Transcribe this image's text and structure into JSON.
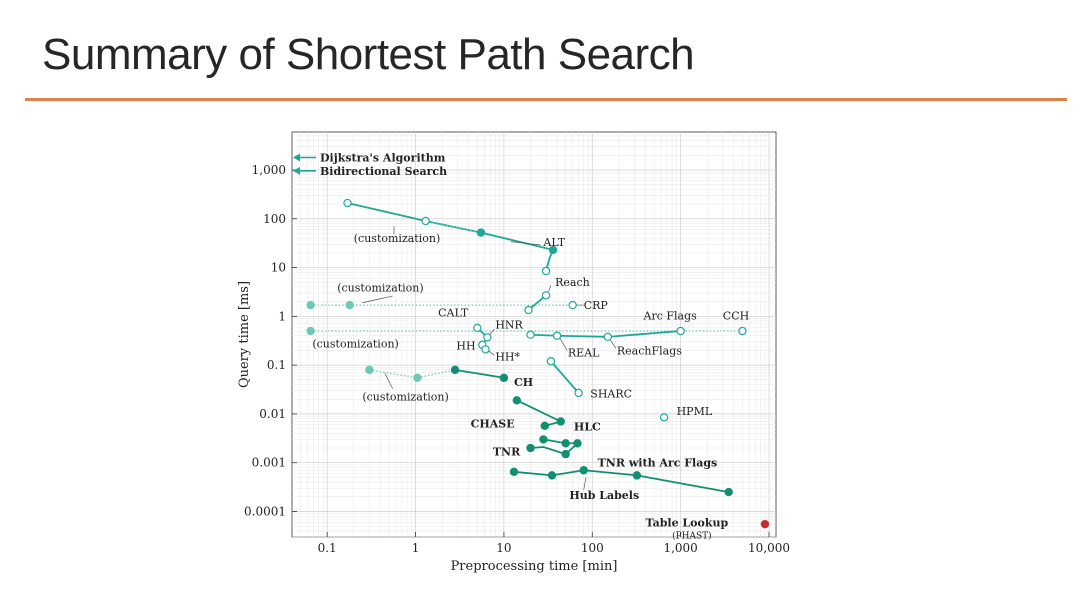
{
  "slide": {
    "title": "Summary of Shortest Path Search"
  },
  "colors": {
    "accent_rule": "#d9834a",
    "main": "#1fa898",
    "light": "#6cc9b3",
    "dark": "#128f73",
    "red": "#c0302e",
    "gray": "#777777"
  },
  "chart_data": {
    "type": "scatter",
    "xlabel": "Preprocessing time [min]",
    "ylabel": "Query time [ms]",
    "x_scale": "log",
    "y_scale": "log",
    "xlim": [
      0.04,
      12000
    ],
    "ylim": [
      3e-05,
      6000
    ],
    "x_ticks": [
      {
        "v": 0.1,
        "label": "0.1"
      },
      {
        "v": 1,
        "label": "1"
      },
      {
        "v": 10,
        "label": "10"
      },
      {
        "v": 100,
        "label": "100"
      },
      {
        "v": 1000,
        "label": "1,000"
      },
      {
        "v": 10000,
        "label": "10,000"
      }
    ],
    "y_ticks": [
      {
        "v": 1000,
        "label": "1,000"
      },
      {
        "v": 100,
        "label": "100"
      },
      {
        "v": 10,
        "label": "10"
      },
      {
        "v": 1,
        "label": "1"
      },
      {
        "v": 0.1,
        "label": "0.1"
      },
      {
        "v": 0.01,
        "label": "0.01"
      },
      {
        "v": 0.001,
        "label": "0.001"
      },
      {
        "v": 0.0001,
        "label": "0.0001"
      }
    ],
    "grid": true,
    "arrows": [
      {
        "y": 1800,
        "label": "Dijkstra's Algorithm"
      },
      {
        "y": 960,
        "label": "Bidirectional Search"
      }
    ],
    "lines": [
      {
        "style": "solid",
        "color": "main",
        "pts": [
          [
            0.17,
            210
          ],
          [
            1.3,
            90
          ],
          [
            5.5,
            52
          ],
          [
            36,
            23
          ],
          [
            33,
            16
          ],
          [
            30,
            8.5
          ]
        ]
      },
      {
        "style": "dotted",
        "color": "light",
        "pts": [
          [
            1.3,
            90
          ],
          [
            5.5,
            52
          ]
        ]
      },
      {
        "style": "dotted",
        "color": "light",
        "pts": [
          [
            0.065,
            1.7
          ],
          [
            0.18,
            1.7
          ],
          [
            19,
            1.7
          ],
          [
            60,
            1.7
          ]
        ]
      },
      {
        "style": "solid",
        "color": "main",
        "pts": [
          [
            19,
            1.35
          ],
          [
            30,
            2.7
          ]
        ]
      },
      {
        "style": "dotted",
        "color": "light",
        "pts": [
          [
            0.065,
            0.5
          ],
          [
            5000,
            0.5
          ]
        ]
      },
      {
        "style": "solid",
        "color": "main",
        "pts": [
          [
            20,
            0.42
          ],
          [
            40,
            0.4
          ],
          [
            150,
            0.38
          ],
          [
            1000,
            0.5
          ]
        ]
      },
      {
        "style": "solid",
        "color": "main",
        "pts": [
          [
            5,
            0.58
          ],
          [
            6.5,
            0.37
          ],
          [
            5.7,
            0.26
          ],
          [
            6.2,
            0.21
          ]
        ]
      },
      {
        "style": "dotted",
        "color": "light",
        "pts": [
          [
            0.3,
            0.08
          ],
          [
            1.05,
            0.055
          ],
          [
            2.8,
            0.08
          ]
        ]
      },
      {
        "style": "solid",
        "color": "dark",
        "pts": [
          [
            2.8,
            0.08
          ],
          [
            10,
            0.055
          ]
        ]
      },
      {
        "style": "solid",
        "color": "main",
        "pts": [
          [
            34,
            0.12
          ],
          [
            70,
            0.027
          ]
        ]
      },
      {
        "style": "solid",
        "color": "dark",
        "pts": [
          [
            14,
            0.019
          ],
          [
            44,
            0.007
          ],
          [
            29,
            0.0057
          ]
        ]
      },
      {
        "style": "solid",
        "color": "dark",
        "pts": [
          [
            28,
            0.003
          ],
          [
            50,
            0.0025
          ],
          [
            68,
            0.0025
          ]
        ]
      },
      {
        "style": "solid",
        "color": "dark",
        "pts": [
          [
            20,
            0.002
          ],
          [
            28,
            0.0021
          ],
          [
            50,
            0.0015
          ],
          [
            68,
            0.0025
          ]
        ]
      },
      {
        "style": "solid",
        "color": "dark",
        "pts": [
          [
            13,
            0.00065
          ],
          [
            35,
            0.00055
          ],
          [
            80,
            0.0007
          ],
          [
            320,
            0.00055
          ],
          [
            3500,
            0.00025
          ]
        ]
      }
    ],
    "points": [
      {
        "x": 0.17,
        "y": 210,
        "fill": "open",
        "color": "main"
      },
      {
        "x": 1.3,
        "y": 90,
        "fill": "open",
        "color": "main"
      },
      {
        "x": 5.5,
        "y": 52,
        "fill": "filled",
        "color": "main"
      },
      {
        "x": 36,
        "y": 23,
        "fill": "filled",
        "color": "main"
      },
      {
        "x": 30,
        "y": 8.5,
        "fill": "open",
        "color": "main"
      },
      {
        "x": 0.065,
        "y": 1.7,
        "fill": "filled",
        "color": "light"
      },
      {
        "x": 0.18,
        "y": 1.7,
        "fill": "filled",
        "color": "light"
      },
      {
        "x": 19,
        "y": 1.35,
        "fill": "open",
        "color": "main"
      },
      {
        "x": 30,
        "y": 2.7,
        "fill": "open",
        "color": "main"
      },
      {
        "x": 60,
        "y": 1.7,
        "fill": "open",
        "color": "main"
      },
      {
        "x": 0.065,
        "y": 0.5,
        "fill": "filled",
        "color": "light"
      },
      {
        "x": 1000,
        "y": 0.5,
        "fill": "open",
        "color": "main"
      },
      {
        "x": 5000,
        "y": 0.5,
        "fill": "open",
        "color": "main"
      },
      {
        "x": 5,
        "y": 0.58,
        "fill": "open",
        "color": "main"
      },
      {
        "x": 6.5,
        "y": 0.37,
        "fill": "open",
        "color": "main"
      },
      {
        "x": 5.7,
        "y": 0.26,
        "fill": "open",
        "color": "main"
      },
      {
        "x": 6.2,
        "y": 0.21,
        "fill": "open",
        "color": "main"
      },
      {
        "x": 20,
        "y": 0.42,
        "fill": "open",
        "color": "main"
      },
      {
        "x": 40,
        "y": 0.4,
        "fill": "open",
        "color": "main"
      },
      {
        "x": 150,
        "y": 0.38,
        "fill": "open",
        "color": "main"
      },
      {
        "x": 0.3,
        "y": 0.08,
        "fill": "filled",
        "color": "light"
      },
      {
        "x": 1.05,
        "y": 0.055,
        "fill": "filled",
        "color": "light"
      },
      {
        "x": 2.8,
        "y": 0.08,
        "fill": "filled",
        "color": "dark"
      },
      {
        "x": 10,
        "y": 0.055,
        "fill": "filled",
        "color": "dark"
      },
      {
        "x": 34,
        "y": 0.12,
        "fill": "open",
        "color": "main"
      },
      {
        "x": 70,
        "y": 0.027,
        "fill": "open",
        "color": "main"
      },
      {
        "x": 650,
        "y": 0.0085,
        "fill": "open",
        "color": "main"
      },
      {
        "x": 14,
        "y": 0.019,
        "fill": "filled",
        "color": "dark"
      },
      {
        "x": 44,
        "y": 0.007,
        "fill": "filled",
        "color": "dark"
      },
      {
        "x": 29,
        "y": 0.0057,
        "fill": "filled",
        "color": "dark"
      },
      {
        "x": 28,
        "y": 0.003,
        "fill": "filled",
        "color": "dark"
      },
      {
        "x": 50,
        "y": 0.0025,
        "fill": "filled",
        "color": "dark"
      },
      {
        "x": 68,
        "y": 0.0025,
        "fill": "filled",
        "color": "dark"
      },
      {
        "x": 20,
        "y": 0.002,
        "fill": "filled",
        "color": "dark"
      },
      {
        "x": 50,
        "y": 0.0015,
        "fill": "filled",
        "color": "dark"
      },
      {
        "x": 13,
        "y": 0.00065,
        "fill": "filled",
        "color": "dark"
      },
      {
        "x": 35,
        "y": 0.00055,
        "fill": "filled",
        "color": "dark"
      },
      {
        "x": 80,
        "y": 0.0007,
        "fill": "filled",
        "color": "dark"
      },
      {
        "x": 320,
        "y": 0.00055,
        "fill": "filled",
        "color": "dark"
      },
      {
        "x": 3500,
        "y": 0.00025,
        "fill": "filled",
        "color": "dark"
      },
      {
        "x": 9000,
        "y": 5.5e-05,
        "fill": "filled",
        "color": "red"
      }
    ],
    "labels": [
      {
        "text": "ALT",
        "x": 28,
        "y": 33,
        "bold": false,
        "leader": [
          [
            26,
            29
          ],
          [
            12,
            34
          ]
        ]
      },
      {
        "text": "(customization)",
        "x": 0.2,
        "y": 40,
        "bold": false,
        "leader": [
          [
            0.57,
            70
          ],
          [
            0.57,
            48
          ]
        ]
      },
      {
        "text": "Reach",
        "x": 38,
        "y": 5,
        "bold": false,
        "leader": [
          [
            34,
            4.3
          ],
          [
            32,
            3.2
          ]
        ]
      },
      {
        "text": "(customization)",
        "x": 0.13,
        "y": 3.9,
        "bold": false,
        "leader": [
          [
            0.55,
            2.6
          ],
          [
            0.25,
            1.9
          ]
        ]
      },
      {
        "text": "CRP",
        "x": 80,
        "y": 1.7,
        "bold": false,
        "leader": [
          [
            80,
            1.7
          ],
          [
            65,
            1.7
          ]
        ]
      },
      {
        "text": "CALT",
        "x": 1.8,
        "y": 1.2,
        "bold": false
      },
      {
        "text": "HNR",
        "x": 8,
        "y": 0.68,
        "bold": false,
        "leader": [
          [
            7.8,
            0.55
          ],
          [
            6.8,
            0.4
          ]
        ]
      },
      {
        "text": "HH",
        "x": 2.9,
        "y": 0.25,
        "bold": false
      },
      {
        "text": "HH*",
        "x": 8,
        "y": 0.15,
        "bold": false,
        "leader": [
          [
            7.8,
            0.16
          ],
          [
            6.6,
            0.2
          ]
        ]
      },
      {
        "text": "REAL",
        "x": 53,
        "y": 0.18,
        "bold": false,
        "leader": [
          [
            52,
            0.2
          ],
          [
            42,
            0.38
          ]
        ]
      },
      {
        "text": "ReachFlags",
        "x": 190,
        "y": 0.2,
        "bold": false,
        "leader": [
          [
            185,
            0.22
          ],
          [
            155,
            0.36
          ]
        ]
      },
      {
        "text": "Arc Flags",
        "x": 380,
        "y": 1.05,
        "bold": false
      },
      {
        "text": "CCH",
        "x": 3000,
        "y": 1.05,
        "bold": false
      },
      {
        "text": "(customization)",
        "x": 0.068,
        "y": 0.28,
        "bold": false
      },
      {
        "text": "(customization)",
        "x": 0.25,
        "y": 0.023,
        "bold": false,
        "leader": [
          [
            0.55,
            0.033
          ],
          [
            0.45,
            0.068
          ]
        ]
      },
      {
        "text": "CH",
        "x": 13,
        "y": 0.045,
        "bold": true
      },
      {
        "text": "SHARC",
        "x": 95,
        "y": 0.026,
        "bold": false
      },
      {
        "text": "HPML",
        "x": 900,
        "y": 0.0115,
        "bold": false
      },
      {
        "text": "CHASE",
        "x": 4.2,
        "y": 0.0063,
        "bold": true
      },
      {
        "text": "HLC",
        "x": 62,
        "y": 0.0055,
        "bold": true
      },
      {
        "text": "TNR",
        "x": 7.5,
        "y": 0.0017,
        "bold": true
      },
      {
        "text": "TNR with Arc Flags",
        "x": 115,
        "y": 0.001,
        "bold": true
      },
      {
        "text": "Hub Labels",
        "x": 55,
        "y": 0.00022,
        "bold": true,
        "leader": [
          [
            80,
            0.00028
          ],
          [
            85,
            0.0005
          ]
        ]
      },
      {
        "text": "Table Lookup",
        "x": 400,
        "y": 6e-05,
        "bold": true
      },
      {
        "text": "(PHAST)",
        "x": 800,
        "y": 3.4e-05,
        "bold": false,
        "small": true
      }
    ]
  }
}
